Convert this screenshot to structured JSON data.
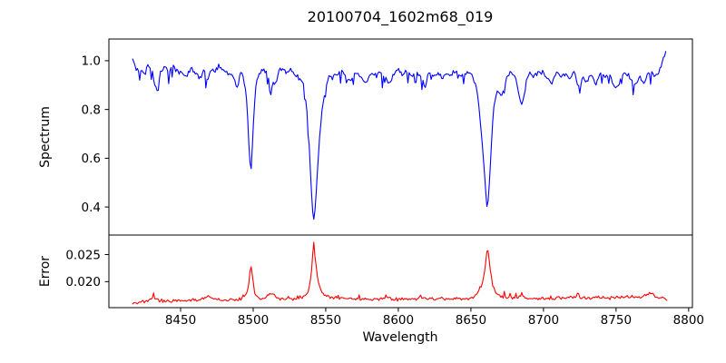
{
  "figure": {
    "title": "20100704_1602m68_019",
    "background": "#ffffff",
    "axis_color": "#000000"
  },
  "chart_data": [
    {
      "type": "line",
      "title": "20100704_1602m68_019",
      "ylabel": "Spectrum",
      "series_name": "spectrum",
      "color": "#0000ff",
      "grid": false,
      "legend": "none",
      "xlim": [
        8400.6,
        8802.6
      ],
      "ylim": [
        0.285,
        1.089
      ],
      "ytick_values": [
        1.0,
        0.8,
        0.6,
        0.4
      ],
      "ytick_labels": [
        "1.0",
        "0.8",
        "0.6",
        "0.4"
      ],
      "absorption_line_centers": [
        8498,
        8542,
        8662
      ],
      "points": [
        [
          8417,
          1.0
        ],
        [
          8419.5,
          0.975
        ],
        [
          8422,
          0.965
        ],
        [
          8424.5,
          0.94
        ],
        [
          8427,
          0.98
        ],
        [
          8430,
          0.965
        ],
        [
          8433.5,
          0.87
        ],
        [
          8436,
          0.95
        ],
        [
          8439,
          0.975
        ],
        [
          8442,
          0.955
        ],
        [
          8445,
          0.98
        ],
        [
          8448,
          0.965
        ],
        [
          8451,
          0.95
        ],
        [
          8454,
          0.93
        ],
        [
          8457,
          0.97
        ],
        [
          8460,
          0.95
        ],
        [
          8463,
          0.93
        ],
        [
          8466,
          0.96
        ],
        [
          8468.5,
          0.915
        ],
        [
          8471,
          0.97
        ],
        [
          8474,
          0.955
        ],
        [
          8477,
          0.98
        ],
        [
          8480,
          0.96
        ],
        [
          8483,
          0.95
        ],
        [
          8486,
          0.94
        ],
        [
          8489,
          0.895
        ],
        [
          8491.5,
          0.95
        ],
        [
          8493.5,
          0.93
        ],
        [
          8495.5,
          0.85
        ],
        [
          8497,
          0.665
        ],
        [
          8498.3,
          0.527
        ],
        [
          8499.5,
          0.655
        ],
        [
          8500.8,
          0.82
        ],
        [
          8502,
          0.905
        ],
        [
          8504,
          0.95
        ],
        [
          8507,
          0.96
        ],
        [
          8510,
          0.95
        ],
        [
          8512,
          0.85
        ],
        [
          8513.5,
          0.915
        ],
        [
          8515.5,
          0.9
        ],
        [
          8517.5,
          0.96
        ],
        [
          8520,
          0.97
        ],
        [
          8523,
          0.95
        ],
        [
          8526,
          0.96
        ],
        [
          8529,
          0.94
        ],
        [
          8532,
          0.93
        ],
        [
          8534.5,
          0.905
        ],
        [
          8536.5,
          0.83
        ],
        [
          8538.5,
          0.665
        ],
        [
          8540,
          0.475
        ],
        [
          8541.5,
          0.335
        ],
        [
          8543,
          0.415
        ],
        [
          8544.5,
          0.57
        ],
        [
          8546,
          0.705
        ],
        [
          8548,
          0.82
        ],
        [
          8550,
          0.89
        ],
        [
          8552,
          0.93
        ],
        [
          8555,
          0.95
        ],
        [
          8558,
          0.94
        ],
        [
          8561,
          0.96
        ],
        [
          8564,
          0.935
        ],
        [
          8567,
          0.92
        ],
        [
          8570,
          0.95
        ],
        [
          8573,
          0.94
        ],
        [
          8576,
          0.92
        ],
        [
          8578.5,
          0.91
        ],
        [
          8581,
          0.95
        ],
        [
          8584,
          0.94
        ],
        [
          8587,
          0.955
        ],
        [
          8590,
          0.935
        ],
        [
          8594,
          0.905
        ],
        [
          8597,
          0.95
        ],
        [
          8600,
          0.96
        ],
        [
          8603,
          0.945
        ],
        [
          8606,
          0.955
        ],
        [
          8609,
          0.935
        ],
        [
          8612,
          0.95
        ],
        [
          8615,
          0.94
        ],
        [
          8618.5,
          0.895
        ],
        [
          8621,
          0.95
        ],
        [
          8624,
          0.935
        ],
        [
          8627,
          0.945
        ],
        [
          8630,
          0.925
        ],
        [
          8633,
          0.95
        ],
        [
          8636,
          0.94
        ],
        [
          8639,
          0.955
        ],
        [
          8642,
          0.935
        ],
        [
          8645,
          0.945
        ],
        [
          8648,
          0.955
        ],
        [
          8651,
          0.935
        ],
        [
          8653.5,
          0.9
        ],
        [
          8655.5,
          0.815
        ],
        [
          8657.5,
          0.685
        ],
        [
          8659.5,
          0.525
        ],
        [
          8661.3,
          0.378
        ],
        [
          8663,
          0.525
        ],
        [
          8664.5,
          0.705
        ],
        [
          8666,
          0.825
        ],
        [
          8668,
          0.88
        ],
        [
          8670.5,
          0.855
        ],
        [
          8672.5,
          0.88
        ],
        [
          8675,
          0.94
        ],
        [
          8678,
          0.95
        ],
        [
          8681,
          0.93
        ],
        [
          8683.5,
          0.85
        ],
        [
          8685.5,
          0.825
        ],
        [
          8688,
          0.905
        ],
        [
          8691,
          0.95
        ],
        [
          8694,
          0.935
        ],
        [
          8697,
          0.955
        ],
        [
          8700,
          0.945
        ],
        [
          8703,
          0.925
        ],
        [
          8706,
          0.905
        ],
        [
          8709,
          0.95
        ],
        [
          8712,
          0.935
        ],
        [
          8715,
          0.945
        ],
        [
          8718,
          0.925
        ],
        [
          8721,
          0.95
        ],
        [
          8724,
          0.895
        ],
        [
          8727,
          0.935
        ],
        [
          8730,
          0.915
        ],
        [
          8733,
          0.945
        ],
        [
          8736,
          0.905
        ],
        [
          8739,
          0.95
        ],
        [
          8742,
          0.935
        ],
        [
          8745,
          0.945
        ],
        [
          8748,
          0.905
        ],
        [
          8751,
          0.89
        ],
        [
          8754,
          0.94
        ],
        [
          8757,
          0.95
        ],
        [
          8760,
          0.925
        ],
        [
          8763,
          0.9
        ],
        [
          8766,
          0.935
        ],
        [
          8769,
          0.905
        ],
        [
          8772,
          0.945
        ],
        [
          8775,
          0.955
        ],
        [
          8778,
          0.935
        ],
        [
          8780.5,
          0.97
        ],
        [
          8782.5,
          1.005
        ],
        [
          8784.5,
          1.03
        ]
      ],
      "noise": {
        "seed": 20100704,
        "amplitude": 0.016,
        "spike_chance": 0.1,
        "spike_depth": 0.05,
        "step": 0.8,
        "ymax_clamp": 1.045,
        "ymin_clamp": 0.3
      }
    },
    {
      "type": "line",
      "ylabel": "Error",
      "xlabel": "Wavelength",
      "series_name": "error",
      "color": "#ff0000",
      "grid": false,
      "legend": "none",
      "xlim": [
        8400.6,
        8802.6
      ],
      "ylim": [
        0.0152,
        0.0286
      ],
      "ytick_values": [
        0.025,
        0.02
      ],
      "ytick_labels": [
        "0.025",
        "0.020"
      ],
      "xtick_values": [
        8450,
        8500,
        8550,
        8600,
        8650,
        8700,
        8750,
        8800
      ],
      "xtick_labels": [
        "8450",
        "8500",
        "8550",
        "8600",
        "8650",
        "8700",
        "8750",
        "8800"
      ],
      "points": [
        [
          8417,
          0.0159
        ],
        [
          8421,
          0.01615
        ],
        [
          8425,
          0.0163
        ],
        [
          8428,
          0.0166
        ],
        [
          8431,
          0.0171
        ],
        [
          8434,
          0.0167
        ],
        [
          8438,
          0.0164
        ],
        [
          8442,
          0.0165
        ],
        [
          8446,
          0.0164
        ],
        [
          8450,
          0.0166
        ],
        [
          8454,
          0.0165
        ],
        [
          8458,
          0.0167
        ],
        [
          8462,
          0.0165
        ],
        [
          8466,
          0.0169
        ],
        [
          8469,
          0.0174
        ],
        [
          8472,
          0.0167
        ],
        [
          8476,
          0.0166
        ],
        [
          8480,
          0.0165
        ],
        [
          8484,
          0.0166
        ],
        [
          8488,
          0.0168
        ],
        [
          8492,
          0.0169
        ],
        [
          8495,
          0.0174
        ],
        [
          8497,
          0.0196
        ],
        [
          8498.3,
          0.0233
        ],
        [
          8499.6,
          0.0207
        ],
        [
          8501,
          0.018
        ],
        [
          8503,
          0.0171
        ],
        [
          8506,
          0.0169
        ],
        [
          8509,
          0.0171
        ],
        [
          8511.5,
          0.018
        ],
        [
          8514,
          0.0177
        ],
        [
          8517,
          0.0169
        ],
        [
          8521,
          0.0167
        ],
        [
          8525,
          0.0168
        ],
        [
          8529,
          0.0168
        ],
        [
          8533,
          0.017
        ],
        [
          8536,
          0.0174
        ],
        [
          8538.5,
          0.0186
        ],
        [
          8540.2,
          0.022
        ],
        [
          8541.6,
          0.0277
        ],
        [
          8543,
          0.0235
        ],
        [
          8544.8,
          0.0198
        ],
        [
          8547,
          0.0181
        ],
        [
          8550,
          0.0174
        ],
        [
          8553,
          0.0171
        ],
        [
          8557,
          0.0169
        ],
        [
          8561,
          0.0168
        ],
        [
          8565,
          0.0169
        ],
        [
          8569,
          0.0168
        ],
        [
          8573,
          0.0167
        ],
        [
          8577,
          0.0169
        ],
        [
          8581,
          0.0168
        ],
        [
          8585,
          0.0167
        ],
        [
          8589,
          0.0169
        ],
        [
          8593,
          0.017
        ],
        [
          8597,
          0.0168
        ],
        [
          8601,
          0.0167
        ],
        [
          8605,
          0.0169
        ],
        [
          8609,
          0.0168
        ],
        [
          8613,
          0.0169
        ],
        [
          8617,
          0.0171
        ],
        [
          8621,
          0.0168
        ],
        [
          8625,
          0.0167
        ],
        [
          8629,
          0.0169
        ],
        [
          8633,
          0.0168
        ],
        [
          8637,
          0.0168
        ],
        [
          8641,
          0.0169
        ],
        [
          8645,
          0.0168
        ],
        [
          8649,
          0.0169
        ],
        [
          8652.5,
          0.0172
        ],
        [
          8655.5,
          0.0181
        ],
        [
          8658,
          0.0197
        ],
        [
          8660,
          0.0228
        ],
        [
          8661.5,
          0.0266
        ],
        [
          8663.2,
          0.0225
        ],
        [
          8665,
          0.0192
        ],
        [
          8667.5,
          0.0178
        ],
        [
          8670,
          0.0173
        ],
        [
          8673,
          0.017
        ],
        [
          8677,
          0.0169
        ],
        [
          8681,
          0.017
        ],
        [
          8684,
          0.0174
        ],
        [
          8687,
          0.0171
        ],
        [
          8691,
          0.0169
        ],
        [
          8695,
          0.017
        ],
        [
          8699,
          0.0169
        ],
        [
          8703,
          0.017
        ],
        [
          8707,
          0.0169
        ],
        [
          8711,
          0.017
        ],
        [
          8715,
          0.0169
        ],
        [
          8719,
          0.0171
        ],
        [
          8723,
          0.0172
        ],
        [
          8727,
          0.017
        ],
        [
          8731,
          0.0169
        ],
        [
          8735,
          0.0171
        ],
        [
          8739,
          0.017
        ],
        [
          8743,
          0.0169
        ],
        [
          8747,
          0.0171
        ],
        [
          8751,
          0.0172
        ],
        [
          8755,
          0.017
        ],
        [
          8759,
          0.0172
        ],
        [
          8763,
          0.0171
        ],
        [
          8767,
          0.017
        ],
        [
          8771,
          0.0176
        ],
        [
          8774.5,
          0.0181
        ],
        [
          8777,
          0.0173
        ],
        [
          8780,
          0.0171
        ],
        [
          8783,
          0.0169
        ],
        [
          8785,
          0.0166
        ]
      ],
      "noise": {
        "seed": 1602068,
        "amplitude": 0.00045,
        "spike_chance": 0.06,
        "spike_depth": -0.0011,
        "step": 0.8,
        "ymax_clamp": 0.0282,
        "ymin_clamp": 0.01545
      }
    }
  ]
}
